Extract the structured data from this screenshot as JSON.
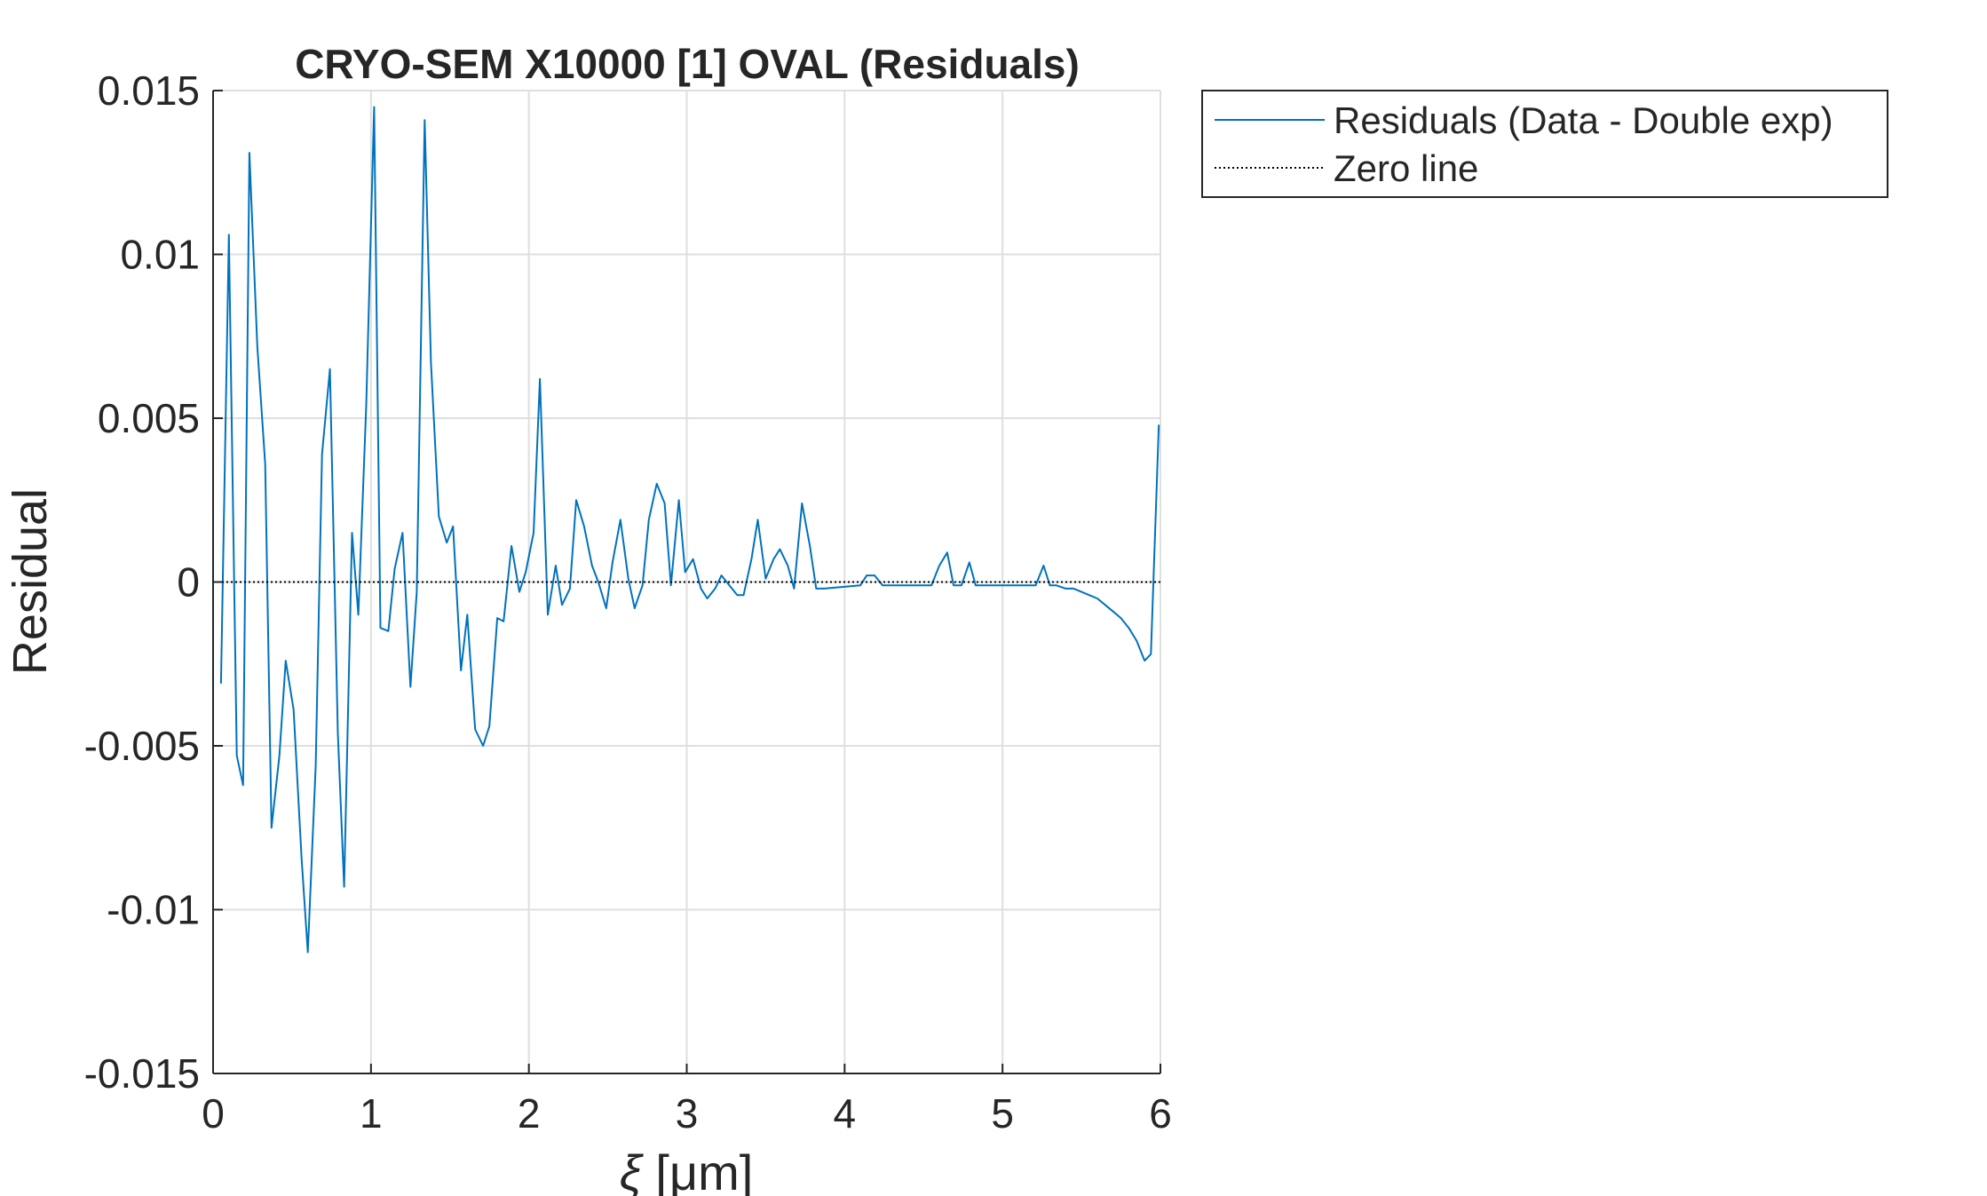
{
  "chart_data": {
    "type": "line",
    "title": "CRYO-SEM X10000 [1] OVAL (Residuals)",
    "xlabel_symbol": "ξ",
    "xlabel_unit": " [μm]",
    "ylabel": "Residual",
    "xlim": [
      0,
      6
    ],
    "ylim": [
      -0.015,
      0.015
    ],
    "xticks": [
      0,
      1,
      2,
      3,
      4,
      5,
      6
    ],
    "xtick_labels": [
      "0",
      "1",
      "2",
      "3",
      "4",
      "5",
      "6"
    ],
    "yticks": [
      -0.015,
      -0.01,
      -0.005,
      0,
      0.005,
      0.01,
      0.015
    ],
    "ytick_labels": [
      "-0.015",
      "-0.01",
      "-0.005",
      "0",
      "0.005",
      "0.01",
      "0.015"
    ],
    "grid": true,
    "legend_position": "outside-top-right",
    "series": [
      {
        "name": "Residuals (Data - Double exp)",
        "color": "#0072BD",
        "style": "solid",
        "x": [
          0.05,
          0.1,
          0.15,
          0.19,
          0.23,
          0.28,
          0.33,
          0.37,
          0.42,
          0.46,
          0.51,
          0.56,
          0.6,
          0.65,
          0.69,
          0.74,
          0.79,
          0.83,
          0.88,
          0.92,
          0.97,
          1.02,
          1.06,
          1.11,
          1.15,
          1.2,
          1.25,
          1.29,
          1.34,
          1.38,
          1.43,
          1.48,
          1.52,
          1.57,
          1.61,
          1.66,
          1.71,
          1.75,
          1.8,
          1.84,
          1.89,
          1.94,
          1.98,
          2.03,
          2.07,
          2.12,
          2.17,
          2.21,
          2.26,
          2.3,
          2.35,
          2.4,
          2.44,
          2.49,
          2.53,
          2.58,
          2.63,
          2.67,
          2.72,
          2.76,
          2.81,
          2.86,
          2.9,
          2.95,
          2.99,
          3.04,
          3.09,
          3.13,
          3.18,
          3.22,
          3.27,
          3.32,
          3.36,
          3.41,
          3.45,
          3.5,
          3.55,
          3.59,
          3.64,
          3.68,
          3.73,
          3.78,
          3.82,
          3.87,
          4.1,
          4.14,
          4.19,
          4.24,
          4.28,
          4.33,
          4.55,
          4.6,
          4.65,
          4.69,
          4.74,
          4.79,
          4.83,
          4.88,
          5.12,
          5.16,
          5.21,
          5.26,
          5.3,
          5.34,
          5.4,
          5.45,
          5.5,
          5.55,
          5.6,
          5.65,
          5.7,
          5.75,
          5.8,
          5.85,
          5.9,
          5.94,
          5.99
        ],
        "y": [
          -0.0031,
          0.0106,
          -0.0053,
          -0.0062,
          0.0131,
          0.0072,
          0.0036,
          -0.0075,
          -0.0053,
          -0.0024,
          -0.0039,
          -0.0084,
          -0.0113,
          -0.0056,
          0.0039,
          0.0065,
          -0.0046,
          -0.0093,
          0.0015,
          -0.001,
          0.0054,
          0.0145,
          -0.0014,
          -0.0015,
          0.0004,
          0.0015,
          -0.0032,
          -0.0003,
          0.0141,
          0.0067,
          0.002,
          0.0012,
          0.0017,
          -0.0027,
          -0.001,
          -0.0045,
          -0.005,
          -0.0044,
          -0.0011,
          -0.0012,
          0.0011,
          -0.0003,
          0.0003,
          0.0015,
          0.0062,
          -0.001,
          0.0005,
          -0.0007,
          -0.0002,
          0.0025,
          0.0017,
          0.0005,
          0.0,
          -0.0008,
          0.0006,
          0.0019,
          0.0001,
          -0.0008,
          -0.0001,
          0.0019,
          0.003,
          0.0024,
          -0.0001,
          0.0025,
          0.0003,
          0.0007,
          -0.0002,
          -0.0005,
          -0.0002,
          0.0002,
          -0.0001,
          -0.0004,
          -0.0004,
          0.0007,
          0.0019,
          0.0001,
          0.0007,
          0.001,
          0.0005,
          -0.0002,
          0.0024,
          0.0011,
          -0.0002,
          -0.0002,
          -0.0001,
          0.0002,
          0.0002,
          -0.0001,
          -0.0001,
          -0.0001,
          -0.0001,
          0.0005,
          0.0009,
          -0.0001,
          -0.0001,
          0.0006,
          -0.0001,
          -0.0001,
          -0.0001,
          -0.0001,
          -0.0001,
          0.0005,
          -0.0001,
          -0.0001,
          -0.0002,
          -0.0002,
          -0.0003,
          -0.0004,
          -0.0005,
          -0.0007,
          -0.0009,
          -0.0011,
          -0.0014,
          -0.0018,
          -0.0024,
          -0.0022,
          0.0048
        ]
      },
      {
        "name": "Zero line",
        "color": "#000000",
        "style": "dotted",
        "x": [
          0,
          6
        ],
        "y": [
          0,
          0
        ]
      }
    ]
  }
}
